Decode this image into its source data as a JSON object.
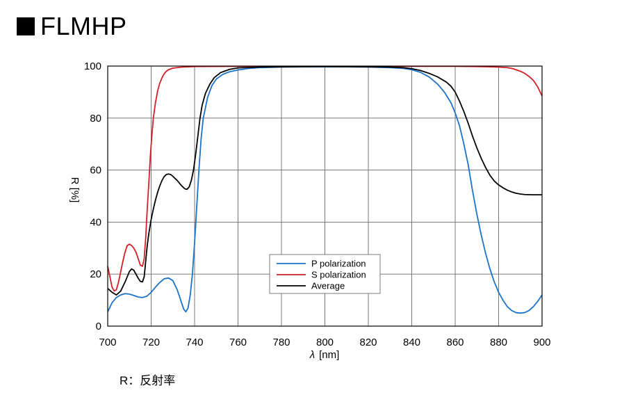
{
  "header": {
    "title": "FLMHP"
  },
  "note": "R：反射率",
  "chart_data": {
    "type": "line",
    "title": "FLMHP",
    "xlabel_symbol": "λ",
    "xlabel": "[nm]",
    "ylabel": "R [%]",
    "xlim": [
      700,
      900
    ],
    "ylim": [
      0,
      100
    ],
    "xticks": [
      700,
      720,
      740,
      760,
      780,
      800,
      820,
      840,
      860,
      880,
      900
    ],
    "yticks": [
      0,
      20,
      40,
      60,
      80,
      100
    ],
    "grid": true,
    "legend_position": "center-bottom",
    "series": [
      {
        "name": "P polarization",
        "color": "#1a73c9",
        "points": [
          [
            700,
            5.5
          ],
          [
            702,
            9
          ],
          [
            704,
            11
          ],
          [
            706,
            12
          ],
          [
            708,
            12.5
          ],
          [
            710,
            12.3
          ],
          [
            712,
            11.8
          ],
          [
            714,
            11.2
          ],
          [
            716,
            11
          ],
          [
            718,
            11.5
          ],
          [
            720,
            13
          ],
          [
            722,
            15
          ],
          [
            724,
            16.8
          ],
          [
            726,
            18.2
          ],
          [
            728,
            18.5
          ],
          [
            730,
            17.5
          ],
          [
            732,
            14
          ],
          [
            734,
            9
          ],
          [
            735,
            6.5
          ],
          [
            736,
            5.5
          ],
          [
            737,
            7
          ],
          [
            738,
            12
          ],
          [
            739,
            20
          ],
          [
            740,
            32
          ],
          [
            741,
            46
          ],
          [
            742,
            60
          ],
          [
            743,
            72
          ],
          [
            744,
            80
          ],
          [
            746,
            88
          ],
          [
            748,
            92.5
          ],
          [
            750,
            95
          ],
          [
            753,
            96.8
          ],
          [
            756,
            97.8
          ],
          [
            760,
            98.5
          ],
          [
            765,
            99.1
          ],
          [
            770,
            99.4
          ],
          [
            780,
            99.6
          ],
          [
            790,
            99.7
          ],
          [
            800,
            99.7
          ],
          [
            810,
            99.7
          ],
          [
            820,
            99.6
          ],
          [
            830,
            99.4
          ],
          [
            836,
            99.1
          ],
          [
            840,
            98.6
          ],
          [
            844,
            97.6
          ],
          [
            848,
            95.8
          ],
          [
            852,
            93
          ],
          [
            855,
            90
          ],
          [
            858,
            86
          ],
          [
            860,
            82
          ],
          [
            862,
            77
          ],
          [
            864,
            70
          ],
          [
            866,
            62
          ],
          [
            868,
            52
          ],
          [
            870,
            43
          ],
          [
            872,
            35
          ],
          [
            874,
            28
          ],
          [
            876,
            22
          ],
          [
            878,
            17
          ],
          [
            880,
            13
          ],
          [
            882,
            10
          ],
          [
            884,
            7.5
          ],
          [
            886,
            6
          ],
          [
            888,
            5.2
          ],
          [
            890,
            5
          ],
          [
            892,
            5.2
          ],
          [
            894,
            6
          ],
          [
            896,
            7.5
          ],
          [
            898,
            9.5
          ],
          [
            900,
            12
          ]
        ]
      },
      {
        "name": "S polarization",
        "color": "#d41f26",
        "points": [
          [
            700,
            23
          ],
          [
            701,
            19
          ],
          [
            702,
            15
          ],
          [
            703,
            13.5
          ],
          [
            704,
            14
          ],
          [
            705,
            17
          ],
          [
            706,
            21
          ],
          [
            707,
            25
          ],
          [
            708,
            28.5
          ],
          [
            709,
            31
          ],
          [
            710,
            31.5
          ],
          [
            711,
            31
          ],
          [
            712,
            30
          ],
          [
            713,
            28.5
          ],
          [
            714,
            26
          ],
          [
            715,
            23.5
          ],
          [
            716,
            23
          ],
          [
            716.8,
            26
          ],
          [
            717.5,
            34
          ],
          [
            718.2,
            45
          ],
          [
            719,
            56
          ],
          [
            719.6,
            65
          ],
          [
            720.2,
            72
          ],
          [
            721,
            80
          ],
          [
            722,
            86
          ],
          [
            723,
            90.5
          ],
          [
            724,
            93.5
          ],
          [
            725,
            95.5
          ],
          [
            726,
            97
          ],
          [
            727,
            98
          ],
          [
            728,
            98.6
          ],
          [
            730,
            99.2
          ],
          [
            734,
            99.6
          ],
          [
            740,
            99.8
          ],
          [
            760,
            99.9
          ],
          [
            800,
            99.9
          ],
          [
            840,
            99.9
          ],
          [
            860,
            99.9
          ],
          [
            870,
            99.8
          ],
          [
            876,
            99.7
          ],
          [
            880,
            99.6
          ],
          [
            884,
            99.4
          ],
          [
            886,
            99.1
          ],
          [
            888,
            98.6
          ],
          [
            890,
            98
          ],
          [
            892,
            97.2
          ],
          [
            894,
            96
          ],
          [
            896,
            94.5
          ],
          [
            898,
            92
          ],
          [
            900,
            88.5
          ]
        ]
      },
      {
        "name": "Average",
        "color": "#000000",
        "points": [
          [
            700,
            14.5
          ],
          [
            702,
            13
          ],
          [
            704,
            12
          ],
          [
            706,
            13.5
          ],
          [
            708,
            17
          ],
          [
            710,
            21
          ],
          [
            711,
            22
          ],
          [
            712,
            21.5
          ],
          [
            713,
            20
          ],
          [
            714,
            18.5
          ],
          [
            715,
            17.2
          ],
          [
            716,
            17
          ],
          [
            716.8,
            19
          ],
          [
            717.5,
            25
          ],
          [
            718.2,
            31
          ],
          [
            719,
            36
          ],
          [
            720,
            41
          ],
          [
            721,
            45
          ],
          [
            722,
            48.5
          ],
          [
            723,
            51.5
          ],
          [
            724,
            54
          ],
          [
            725,
            56
          ],
          [
            726,
            57.5
          ],
          [
            727,
            58.3
          ],
          [
            728,
            58.5
          ],
          [
            729,
            58.3
          ],
          [
            730,
            57.6
          ],
          [
            732,
            56
          ],
          [
            734,
            54
          ],
          [
            735.5,
            52.8
          ],
          [
            736.5,
            52.6
          ],
          [
            737.5,
            53.5
          ],
          [
            738.5,
            56
          ],
          [
            739.5,
            60
          ],
          [
            740.5,
            66
          ],
          [
            741.5,
            73
          ],
          [
            742.5,
            80
          ],
          [
            743.5,
            85
          ],
          [
            745,
            89.5
          ],
          [
            747,
            93
          ],
          [
            749,
            95.5
          ],
          [
            752,
            97.5
          ],
          [
            756,
            98.7
          ],
          [
            760,
            99.3
          ],
          [
            770,
            99.6
          ],
          [
            780,
            99.7
          ],
          [
            800,
            99.8
          ],
          [
            820,
            99.7
          ],
          [
            830,
            99.6
          ],
          [
            836,
            99.4
          ],
          [
            840,
            99
          ],
          [
            844,
            98.3
          ],
          [
            848,
            97.2
          ],
          [
            852,
            95.8
          ],
          [
            856,
            93.8
          ],
          [
            858,
            92.3
          ],
          [
            860,
            90
          ],
          [
            862,
            86.5
          ],
          [
            864,
            82.5
          ],
          [
            866,
            78
          ],
          [
            868,
            73
          ],
          [
            870,
            68.5
          ],
          [
            872,
            64.5
          ],
          [
            874,
            61
          ],
          [
            876,
            58
          ],
          [
            878,
            55.8
          ],
          [
            880,
            54.3
          ],
          [
            882,
            53.2
          ],
          [
            884,
            52.3
          ],
          [
            886,
            51.6
          ],
          [
            888,
            51.1
          ],
          [
            890,
            50.8
          ],
          [
            892,
            50.6
          ],
          [
            896,
            50.5
          ],
          [
            900,
            50.5
          ]
        ]
      }
    ]
  }
}
